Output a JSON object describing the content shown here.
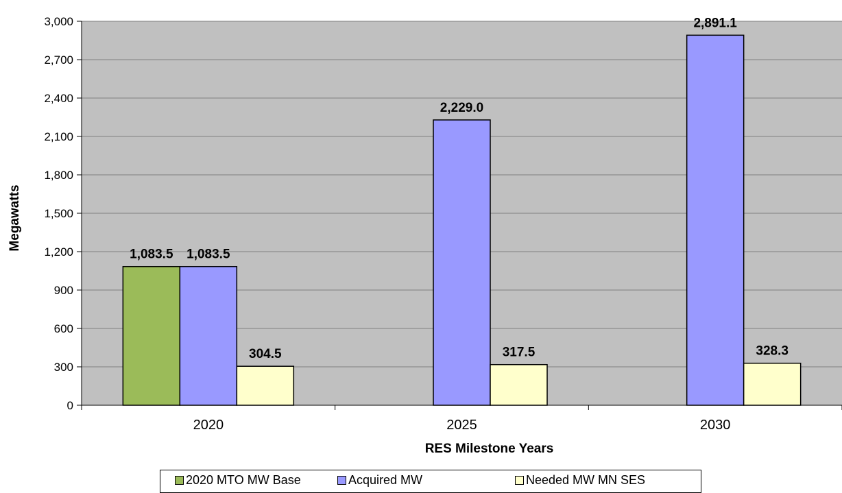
{
  "chart_data": {
    "type": "bar",
    "categories": [
      "2020",
      "2025",
      "2030"
    ],
    "series": [
      {
        "name": "2020 MTO MW Base",
        "color": "#9BBB59",
        "values": [
          1083.5,
          null,
          null
        ],
        "labels": [
          "1,083.5",
          null,
          null
        ]
      },
      {
        "name": "Acquired MW",
        "color": "#9999FF",
        "values": [
          1083.5,
          2229.0,
          2891.1
        ],
        "labels": [
          "1,083.5",
          "2,229.0",
          "2,891.1"
        ]
      },
      {
        "name": "Needed MW MN SES",
        "color": "#FFFFCC",
        "values": [
          304.5,
          317.5,
          328.3
        ],
        "labels": [
          "304.5",
          "317.5",
          "328.3"
        ]
      }
    ],
    "xlabel": "RES Milestone Years",
    "ylabel": "Megawatts",
    "ylim": [
      0,
      3000
    ],
    "yticks": [
      0,
      300,
      600,
      900,
      1200,
      1500,
      1800,
      2100,
      2400,
      2700,
      3000
    ],
    "ytick_labels": [
      "0",
      "300",
      "600",
      "900",
      "1,200",
      "1,500",
      "1,800",
      "2,100",
      "2,400",
      "2,700",
      "3,000"
    ],
    "grid": true,
    "plot_background": "#C0C0C0",
    "legend_position": "bottom"
  }
}
